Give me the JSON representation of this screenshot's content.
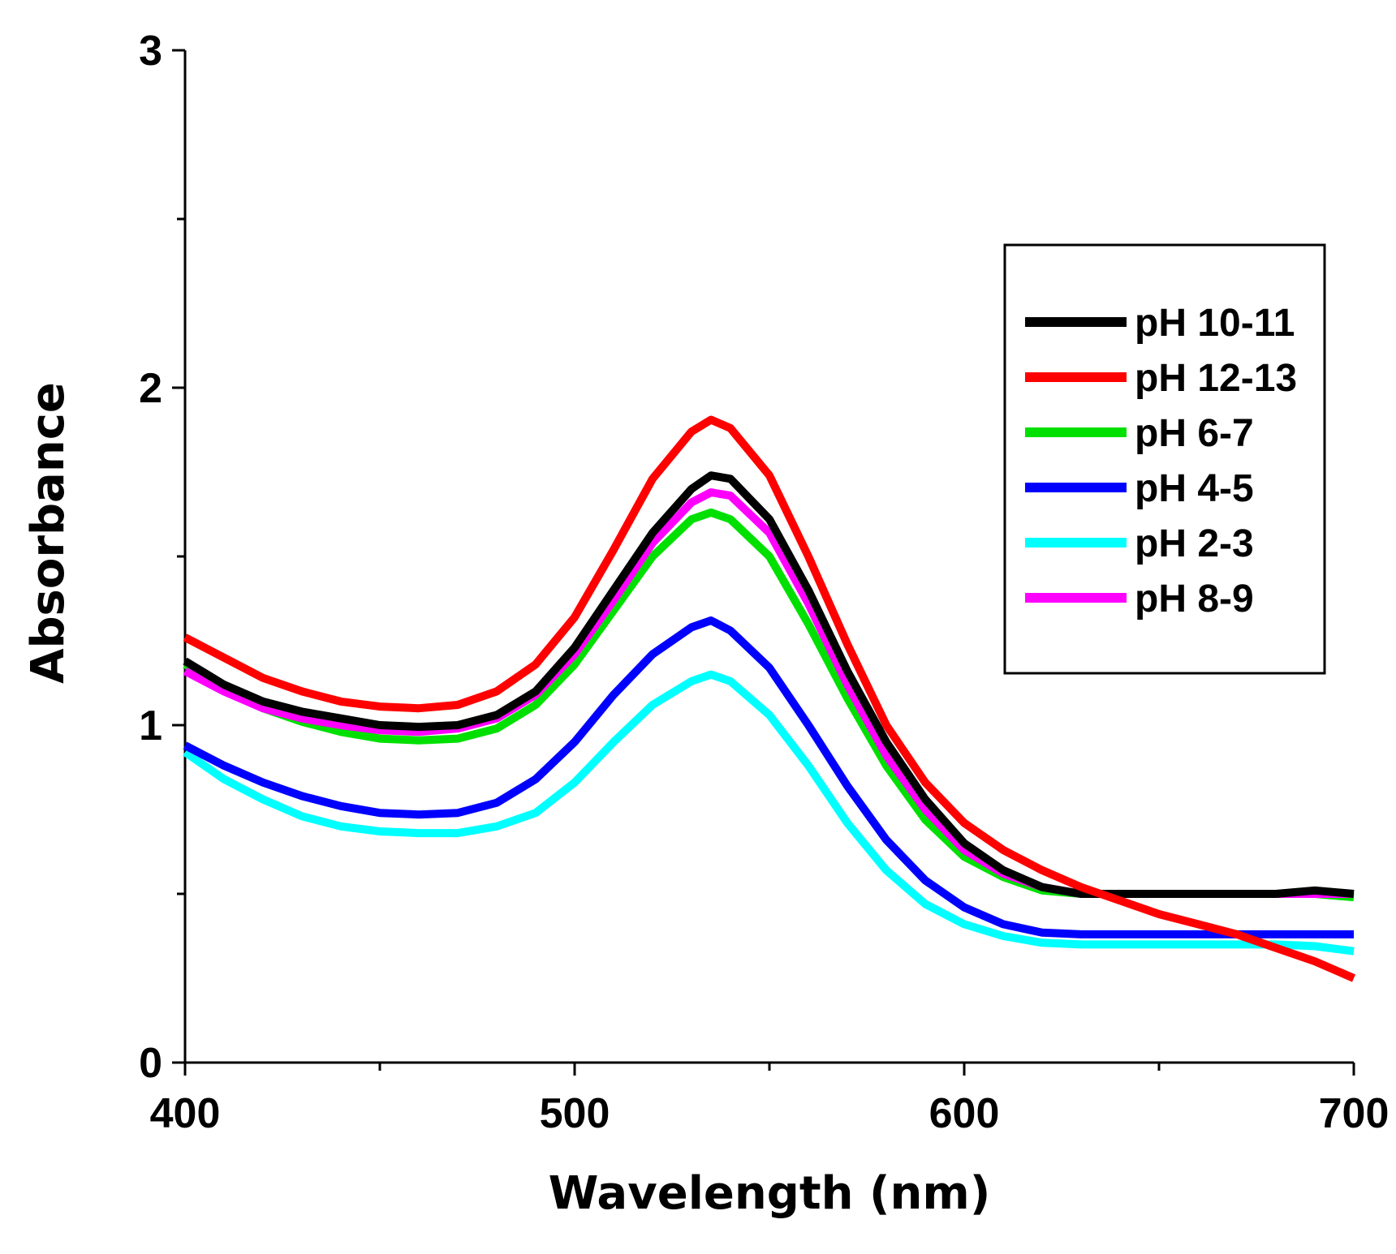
{
  "chart_data": {
    "type": "line",
    "title": "",
    "xlabel": "Wavelength (nm)",
    "ylabel": "Absorbance",
    "xlim": [
      400,
      700
    ],
    "ylim": [
      0,
      3
    ],
    "x_major_ticks": [
      400,
      500,
      600,
      700
    ],
    "x_minor_ticks": [
      450,
      550,
      650
    ],
    "y_major_ticks": [
      0,
      1,
      2,
      3
    ],
    "y_minor_ticks": [
      0.5,
      1.5,
      2.5
    ],
    "x_tick_labels": [
      "400",
      "500",
      "600",
      "700"
    ],
    "y_tick_labels": [
      "0",
      "1",
      "2",
      "3"
    ],
    "grid": false,
    "legend_position": "top-right",
    "series": [
      {
        "name": "pH 10-11",
        "color": "#000000",
        "x": [
          400,
          410,
          420,
          430,
          440,
          450,
          460,
          470,
          480,
          490,
          500,
          510,
          520,
          530,
          535,
          540,
          550,
          560,
          570,
          580,
          590,
          600,
          610,
          620,
          630,
          640,
          650,
          660,
          670,
          680,
          690,
          700
        ],
        "y": [
          1.19,
          1.12,
          1.07,
          1.04,
          1.02,
          1.0,
          0.995,
          1.0,
          1.03,
          1.1,
          1.23,
          1.4,
          1.57,
          1.7,
          1.74,
          1.73,
          1.61,
          1.4,
          1.16,
          0.95,
          0.78,
          0.65,
          0.57,
          0.52,
          0.5,
          0.5,
          0.5,
          0.5,
          0.5,
          0.5,
          0.51,
          0.5
        ]
      },
      {
        "name": "pH 12-13",
        "color": "#ff0000",
        "x": [
          400,
          410,
          420,
          430,
          440,
          450,
          460,
          470,
          480,
          490,
          500,
          510,
          520,
          530,
          535,
          540,
          550,
          560,
          570,
          580,
          590,
          600,
          610,
          620,
          630,
          640,
          650,
          660,
          670,
          680,
          690,
          700
        ],
        "y": [
          1.26,
          1.2,
          1.14,
          1.1,
          1.07,
          1.055,
          1.05,
          1.06,
          1.1,
          1.18,
          1.32,
          1.52,
          1.73,
          1.87,
          1.905,
          1.88,
          1.74,
          1.5,
          1.24,
          1.0,
          0.83,
          0.71,
          0.63,
          0.57,
          0.52,
          0.48,
          0.44,
          0.41,
          0.38,
          0.34,
          0.3,
          0.25
        ]
      },
      {
        "name": "pH 6-7",
        "color": "#00e000",
        "x": [
          400,
          410,
          420,
          430,
          440,
          450,
          460,
          470,
          480,
          490,
          500,
          510,
          520,
          530,
          535,
          540,
          550,
          560,
          570,
          580,
          590,
          600,
          610,
          620,
          630,
          640,
          650,
          660,
          670,
          680,
          690,
          700
        ],
        "y": [
          1.18,
          1.11,
          1.05,
          1.01,
          0.98,
          0.96,
          0.955,
          0.96,
          0.99,
          1.06,
          1.18,
          1.34,
          1.5,
          1.61,
          1.63,
          1.61,
          1.5,
          1.3,
          1.08,
          0.88,
          0.72,
          0.61,
          0.55,
          0.51,
          0.5,
          0.5,
          0.5,
          0.5,
          0.5,
          0.5,
          0.5,
          0.49
        ]
      },
      {
        "name": "pH 4-5",
        "color": "#0000ff",
        "x": [
          400,
          410,
          420,
          430,
          440,
          450,
          460,
          470,
          480,
          490,
          500,
          510,
          520,
          530,
          535,
          540,
          550,
          560,
          570,
          580,
          590,
          600,
          610,
          620,
          630,
          640,
          650,
          660,
          670,
          680,
          690,
          700
        ],
        "y": [
          0.94,
          0.88,
          0.83,
          0.79,
          0.76,
          0.74,
          0.735,
          0.74,
          0.77,
          0.84,
          0.95,
          1.09,
          1.21,
          1.29,
          1.31,
          1.28,
          1.17,
          1.0,
          0.82,
          0.66,
          0.54,
          0.46,
          0.41,
          0.385,
          0.38,
          0.38,
          0.38,
          0.38,
          0.38,
          0.38,
          0.38,
          0.38
        ]
      },
      {
        "name": "pH 2-3",
        "color": "#00ffff",
        "x": [
          400,
          410,
          420,
          430,
          440,
          450,
          460,
          470,
          480,
          490,
          500,
          510,
          520,
          530,
          535,
          540,
          550,
          560,
          570,
          580,
          590,
          600,
          610,
          620,
          630,
          640,
          650,
          660,
          670,
          680,
          690,
          700
        ],
        "y": [
          0.92,
          0.84,
          0.78,
          0.73,
          0.7,
          0.685,
          0.68,
          0.68,
          0.7,
          0.74,
          0.83,
          0.95,
          1.06,
          1.13,
          1.15,
          1.13,
          1.03,
          0.88,
          0.71,
          0.57,
          0.47,
          0.41,
          0.375,
          0.355,
          0.35,
          0.35,
          0.35,
          0.35,
          0.35,
          0.35,
          0.345,
          0.33
        ]
      },
      {
        "name": "pH 8-9",
        "color": "#ff00ff",
        "x": [
          400,
          410,
          420,
          430,
          440,
          450,
          460,
          470,
          480,
          490,
          500,
          510,
          520,
          530,
          535,
          540,
          550,
          560,
          570,
          580,
          590,
          600,
          610,
          620,
          630,
          640,
          650,
          660,
          670,
          680,
          690,
          700
        ],
        "y": [
          1.16,
          1.1,
          1.05,
          1.02,
          1.0,
          0.985,
          0.98,
          0.99,
          1.02,
          1.09,
          1.21,
          1.37,
          1.54,
          1.66,
          1.69,
          1.68,
          1.57,
          1.36,
          1.12,
          0.91,
          0.75,
          0.63,
          0.56,
          0.52,
          0.5,
          0.5,
          0.5,
          0.5,
          0.5,
          0.5,
          0.5,
          0.5
        ]
      }
    ]
  }
}
